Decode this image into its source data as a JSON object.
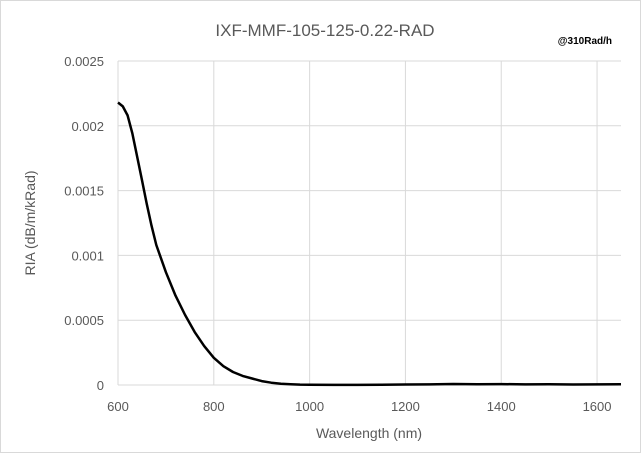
{
  "chart_data": {
    "type": "line",
    "title": "IXF-MMF-105-125-0.22-RAD",
    "annotation": "@310Rad/h",
    "xlabel": "Wavelength (nm)",
    "ylabel": "RIA (dB/m/kRad)",
    "xlim": [
      600,
      1650
    ],
    "ylim": [
      0,
      0.0025
    ],
    "x_ticks": [
      "600",
      "800",
      "1000",
      "1200",
      "1400",
      "1600"
    ],
    "y_ticks": [
      "0",
      "0.0005",
      "0.001",
      "0.0015",
      "0.002",
      "0.0025"
    ],
    "grid": true,
    "legend": "none",
    "series": [
      {
        "color": "#000000",
        "x": [
          600,
          610,
          620,
          630,
          640,
          650,
          660,
          670,
          680,
          700,
          720,
          740,
          760,
          780,
          800,
          820,
          840,
          860,
          880,
          900,
          920,
          940,
          960,
          980,
          1000,
          1050,
          1100,
          1150,
          1200,
          1250,
          1300,
          1350,
          1400,
          1450,
          1500,
          1550,
          1600,
          1650
        ],
        "y": [
          0.00218,
          0.00215,
          0.00208,
          0.00194,
          0.00176,
          0.00158,
          0.0014,
          0.00123,
          0.00108,
          0.00087,
          0.00069,
          0.00054,
          0.00041,
          0.0003,
          0.00021,
          0.000145,
          0.0001,
          7e-05,
          5e-05,
          3e-05,
          1.8e-05,
          1e-05,
          6e-06,
          3e-06,
          2e-06,
          1e-06,
          1e-06,
          2e-06,
          4e-06,
          5e-06,
          8e-06,
          6e-06,
          7e-06,
          5e-06,
          6e-06,
          4e-06,
          5e-06,
          6e-06
        ]
      }
    ]
  }
}
